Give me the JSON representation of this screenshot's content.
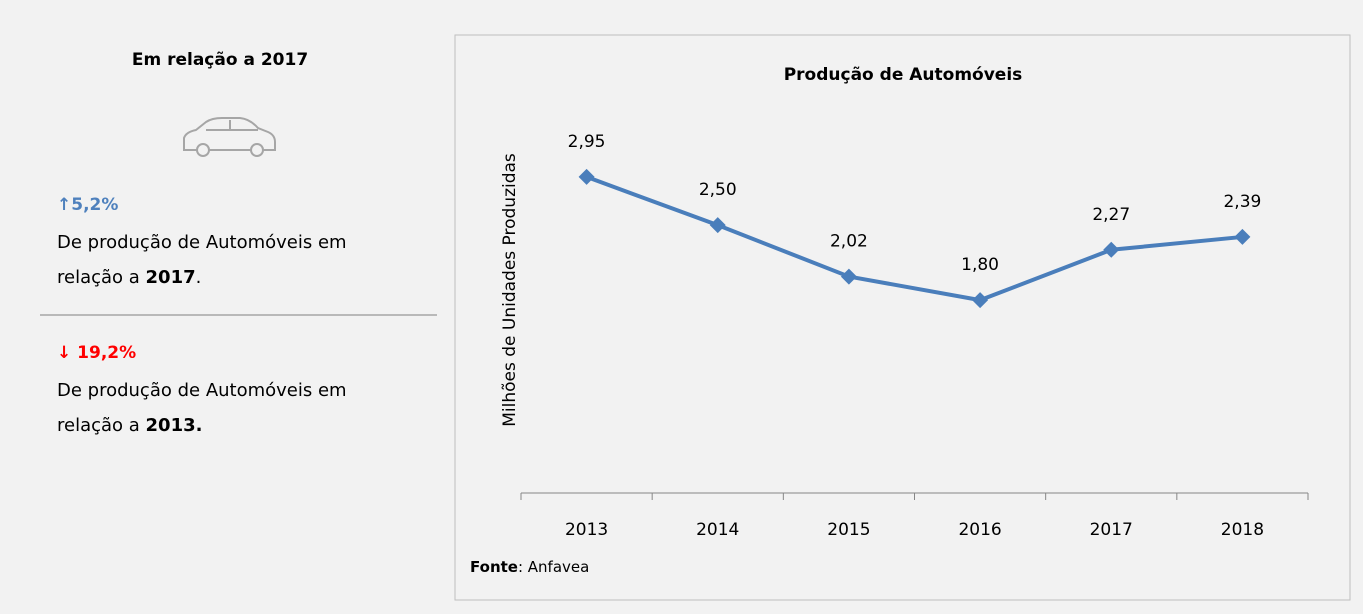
{
  "panel": {
    "title": "Em relação a 2017",
    "items": [
      {
        "change": "↑5,2%",
        "line1": "De produção de Automóveis em",
        "line2": "relação a ",
        "bold": "2017",
        "end": "."
      },
      {
        "change": "↓ 19,2%",
        "line1": "De produção de Automóveis em",
        "line2": "relação a ",
        "bold": "2013.",
        "end": ""
      }
    ]
  },
  "chart_data": {
    "type": "line",
    "title": "Produção de Automóveis",
    "y_label": "Milhões de Unidades Produzidas",
    "categories": [
      "2013",
      "2014",
      "2015",
      "2016",
      "2017",
      "2018"
    ],
    "series": [
      {
        "name": "Produção de Automóveis",
        "color": "#4a7ebb",
        "values": [
          2.95,
          2.5,
          2.02,
          1.8,
          2.27,
          2.39
        ],
        "value_labels": [
          "2,95",
          "2,50",
          "2,02",
          "1,80",
          "2,27",
          "2,39"
        ]
      }
    ],
    "ylim": [
      0,
      3.5
    ],
    "source_label": "Fonte",
    "source": ": Anfavea"
  }
}
